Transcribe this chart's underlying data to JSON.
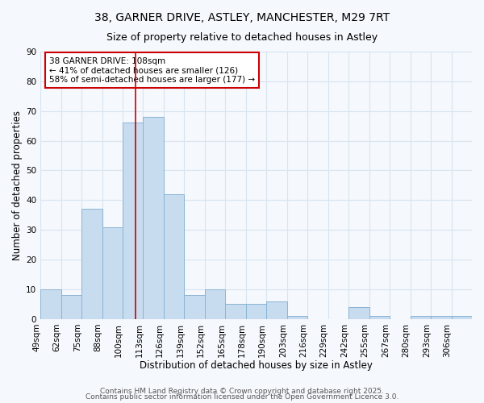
{
  "title_line1": "38, GARNER DRIVE, ASTLEY, MANCHESTER, M29 7RT",
  "title_line2": "Size of property relative to detached houses in Astley",
  "xlabel": "Distribution of detached houses by size in Astley",
  "ylabel": "Number of detached properties",
  "bin_labels": [
    "49sqm",
    "62sqm",
    "75sqm",
    "88sqm",
    "100sqm",
    "113sqm",
    "126sqm",
    "139sqm",
    "152sqm",
    "165sqm",
    "178sqm",
    "190sqm",
    "203sqm",
    "216sqm",
    "229sqm",
    "242sqm",
    "255sqm",
    "267sqm",
    "280sqm",
    "293sqm",
    "306sqm"
  ],
  "counts": [
    10,
    8,
    37,
    31,
    66,
    68,
    42,
    8,
    10,
    5,
    5,
    6,
    1,
    0,
    0,
    4,
    1,
    0,
    1,
    1,
    1
  ],
  "bar_color": "#c8dcf0",
  "bar_edge_color": "#8ab4d4",
  "red_line_bin": 4,
  "annotation_text": "38 GARNER DRIVE: 108sqm\n← 41% of detached houses are smaller (126)\n58% of semi-detached houses are larger (177) →",
  "annotation_box_color": "white",
  "annotation_box_edge_color": "#cc0000",
  "ylim": [
    0,
    90
  ],
  "yticks": [
    0,
    10,
    20,
    30,
    40,
    50,
    60,
    70,
    80,
    90
  ],
  "background_color": "#f5f8fc",
  "grid_color": "#d8e4f0",
  "footer_line1": "Contains HM Land Registry data © Crown copyright and database right 2025.",
  "footer_line2": "Contains public sector information licensed under the Open Government Licence 3.0.",
  "title_fontsize": 10,
  "subtitle_fontsize": 9,
  "axis_label_fontsize": 8.5,
  "tick_fontsize": 7.5,
  "annotation_fontsize": 7.5,
  "footer_fontsize": 6.5
}
